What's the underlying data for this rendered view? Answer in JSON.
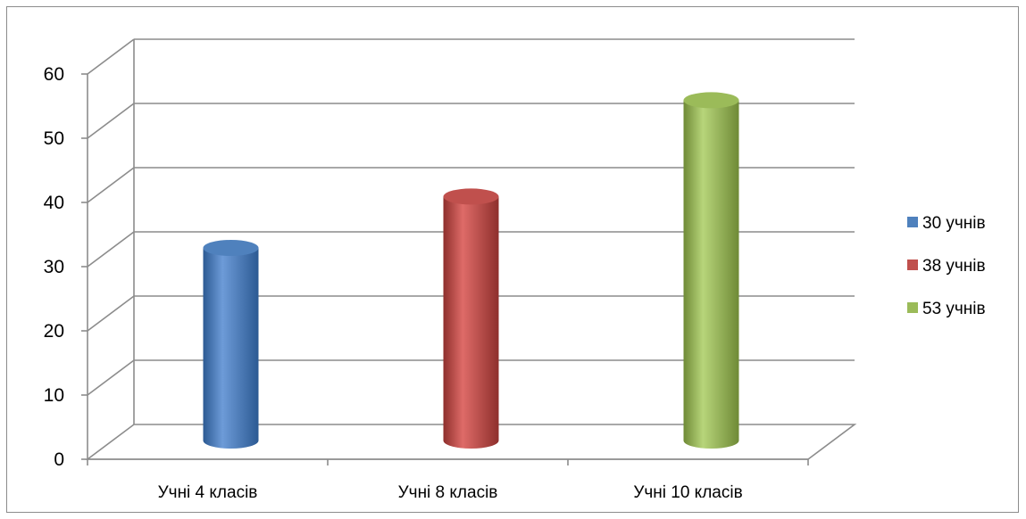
{
  "chart_data": {
    "type": "bar",
    "style": "3d-cylinder",
    "categories": [
      "Учні 4 класів",
      "Учні 8 класів",
      "Учні 10 класів"
    ],
    "series": [
      {
        "name": "30 учнів",
        "values": [
          30,
          null,
          null
        ],
        "color": "#4f81bd"
      },
      {
        "name": "38 учнів",
        "values": [
          null,
          38,
          null
        ],
        "color": "#c0504d"
      },
      {
        "name": "53 учнів",
        "values": [
          null,
          null,
          53
        ],
        "color": "#9bbb59"
      }
    ],
    "title": "",
    "xlabel": "",
    "ylabel": "",
    "ylim": [
      0,
      60
    ],
    "yticks": [
      0,
      10,
      20,
      30,
      40,
      50,
      60
    ],
    "grid": true,
    "legend_position": "right"
  }
}
